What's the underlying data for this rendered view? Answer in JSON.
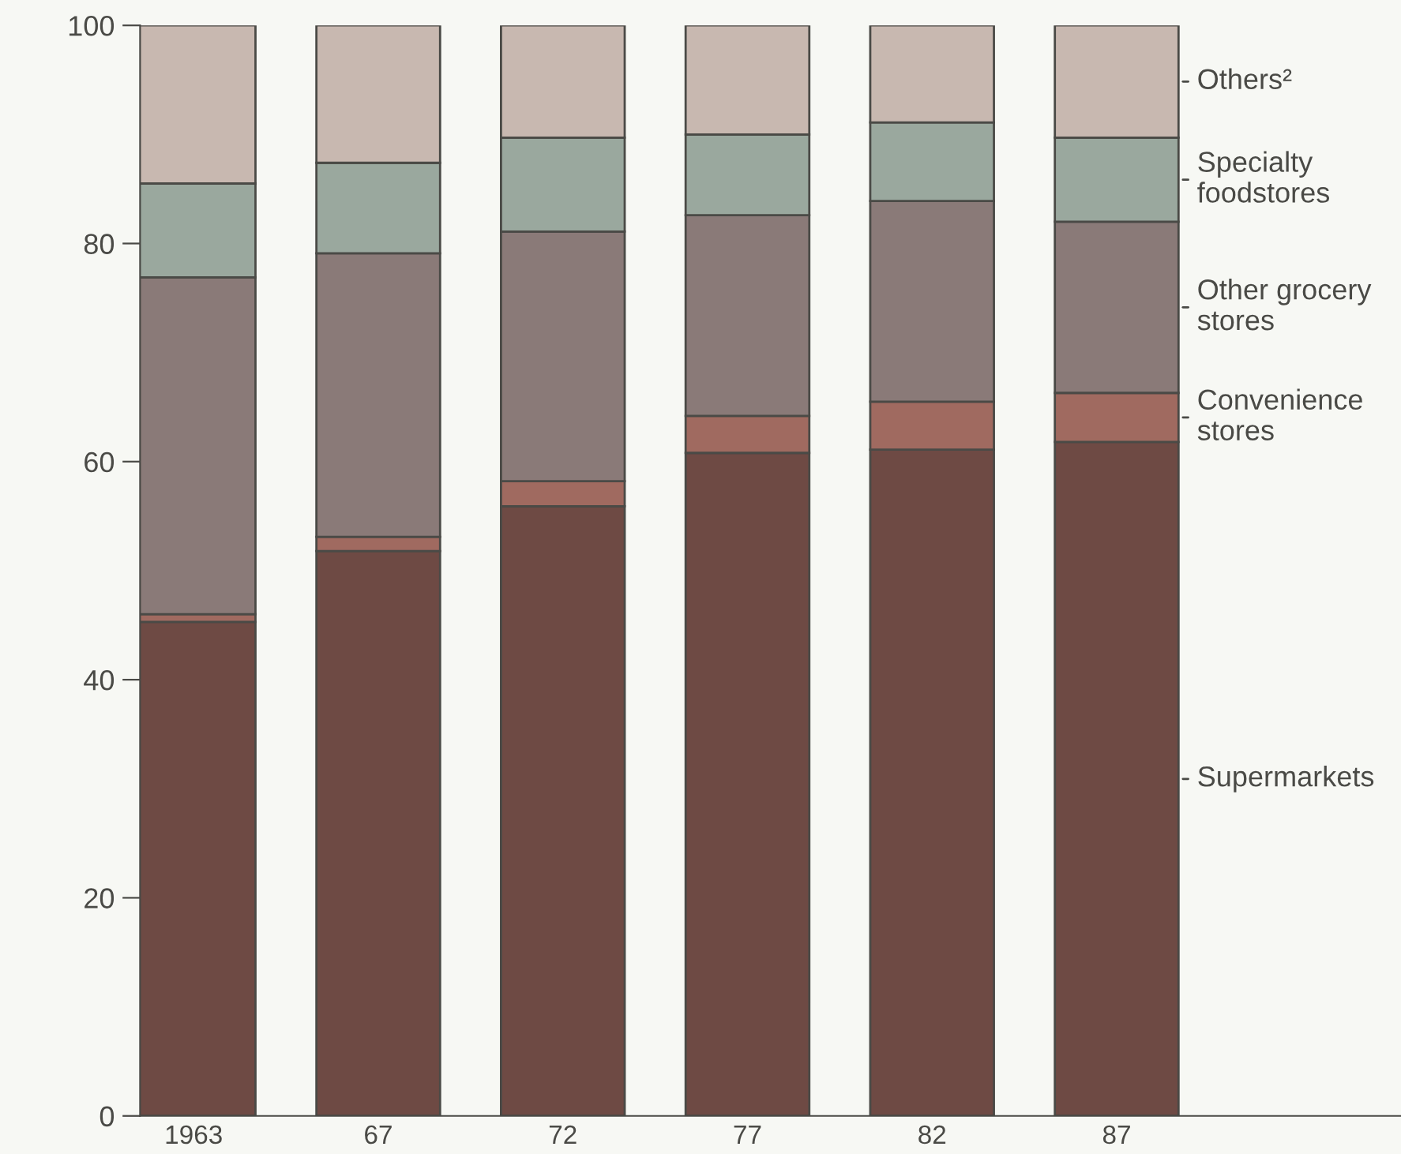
{
  "chart_data": {
    "type": "bar",
    "stacked": true,
    "categories": [
      "1963",
      "67",
      "72",
      "77",
      "82",
      "87"
    ],
    "series": [
      {
        "name": "Supermarkets",
        "color": "#6e4a44",
        "values": [
          45.3,
          51.8,
          55.9,
          60.8,
          61.1,
          61.8
        ]
      },
      {
        "name": "Convenience\nstores",
        "color": "#a06a60",
        "values": [
          0.7,
          1.3,
          2.3,
          3.4,
          4.4,
          4.5
        ]
      },
      {
        "name": "Other grocery\nstores",
        "color": "#8a7a78",
        "values": [
          30.9,
          26.0,
          22.9,
          18.4,
          18.4,
          15.7
        ]
      },
      {
        "name": "Specialty\nfoodstores",
        "color": "#9aa89e",
        "values": [
          8.6,
          8.3,
          8.6,
          7.4,
          7.2,
          7.7
        ]
      },
      {
        "name": "Others²",
        "color": "#c8b8b0",
        "values": [
          14.5,
          12.6,
          10.3,
          10.0,
          8.9,
          10.3
        ]
      }
    ],
    "ylim": [
      0,
      100
    ],
    "yticks": [
      0,
      20,
      40,
      60,
      80,
      100
    ],
    "grid": false,
    "legend": "right"
  }
}
